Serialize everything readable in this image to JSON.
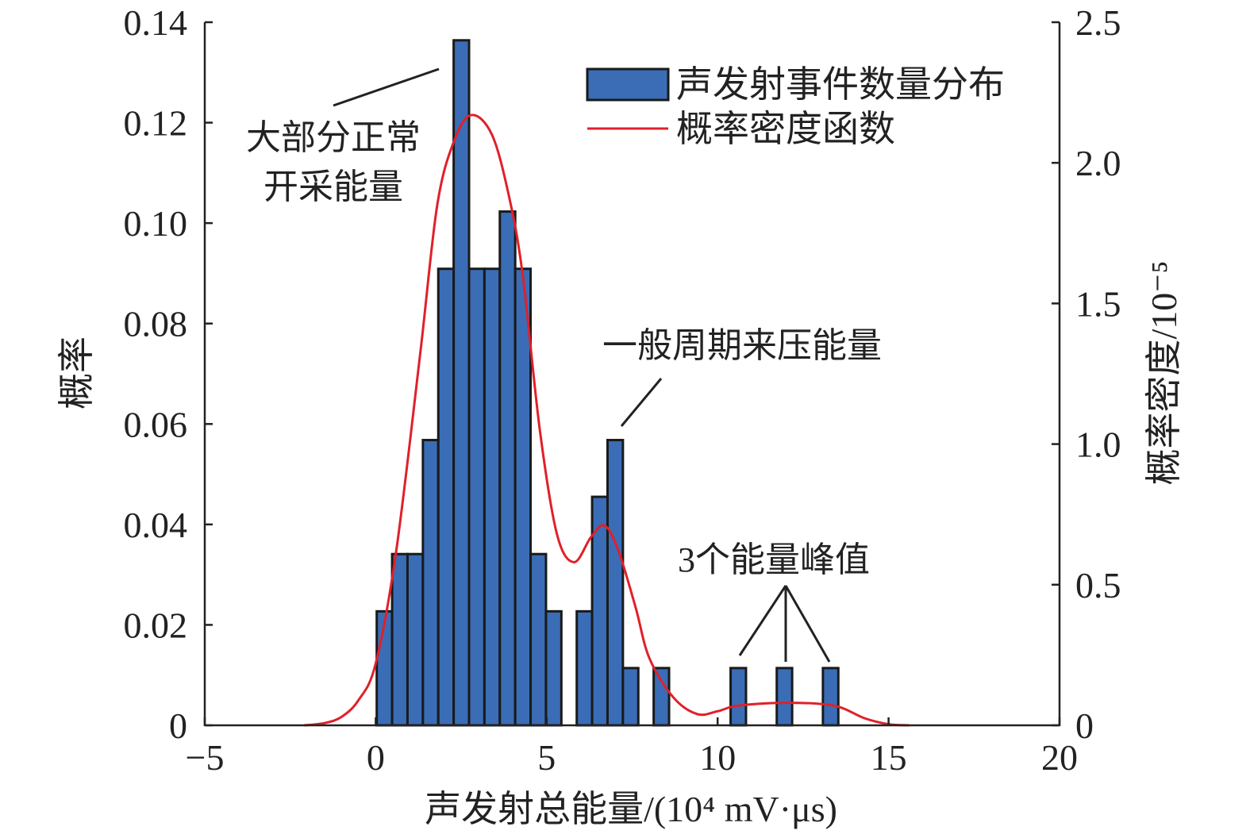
{
  "chart_data": {
    "type": "bar",
    "title": "",
    "xlabel": "声发射总能量/(10⁴ mV·μs)",
    "ylabel": "概率",
    "y2label": "概率密度/10⁻⁵",
    "xlim": [
      -5,
      20
    ],
    "ylim": [
      0,
      0.14
    ],
    "y2lim": [
      0,
      2.5
    ],
    "xticks": [
      "−5",
      "0",
      "5",
      "10",
      "15",
      "20"
    ],
    "xtick_values": [
      -5,
      0,
      5,
      10,
      15,
      20
    ],
    "yticks": [
      "0",
      "0.02",
      "0.04",
      "0.06",
      "0.08",
      "0.10",
      "0.12",
      "0.14"
    ],
    "ytick_values": [
      0,
      0.02,
      0.04,
      0.06,
      0.08,
      0.1,
      0.12,
      0.14
    ],
    "y2ticks": [
      "0",
      "0.5",
      "1.0",
      "1.5",
      "2.0",
      "2.5"
    ],
    "y2tick_values": [
      0,
      0.5,
      1.0,
      1.5,
      2.0,
      2.5
    ],
    "grid": false,
    "legend_position": "top-right",
    "series": [
      {
        "name": "声发射事件数量分布",
        "type": "histogram",
        "color": "#3a6db6",
        "bin_start": 0.03,
        "bin_width": 0.45,
        "values": [
          0.0227,
          0.0341,
          0.0341,
          0.0568,
          0.0909,
          0.1364,
          0.0909,
          0.0909,
          0.1023,
          0.0909,
          0.0341,
          0.0227,
          0,
          0.0227,
          0.0455,
          0.0568,
          0.0114,
          0,
          0.0114,
          0,
          0,
          0,
          0,
          0.0114,
          0,
          0,
          0.0114,
          0,
          0,
          0.0114
        ]
      },
      {
        "name": "概率密度函数",
        "type": "line",
        "axis": "right",
        "color": "#e0202a",
        "x": [
          -2.1,
          -1.5,
          -1,
          -0.5,
          0,
          0.6,
          1.3,
          1.8,
          2.3,
          2.8,
          3.4,
          3.9,
          4.3,
          4.8,
          5.3,
          5.8,
          6.3,
          6.7,
          7.1,
          7.6,
          8.0,
          8.7,
          9.4,
          10.0,
          10.6,
          12.0,
          13.4,
          14.3,
          15.0,
          15.6
        ],
        "y": [
          0,
          0.008,
          0.03,
          0.09,
          0.22,
          0.62,
          1.32,
          1.85,
          2.08,
          2.17,
          2.1,
          1.88,
          1.6,
          1.05,
          0.68,
          0.58,
          0.67,
          0.71,
          0.62,
          0.42,
          0.24,
          0.1,
          0.04,
          0.05,
          0.07,
          0.08,
          0.07,
          0.025,
          0.004,
          0
        ]
      }
    ],
    "annotations": {
      "normal_1": "大部分正常",
      "normal_2": "开采能量",
      "periodic": "一般周期来压能量",
      "peaks": "3个能量峰值"
    }
  }
}
